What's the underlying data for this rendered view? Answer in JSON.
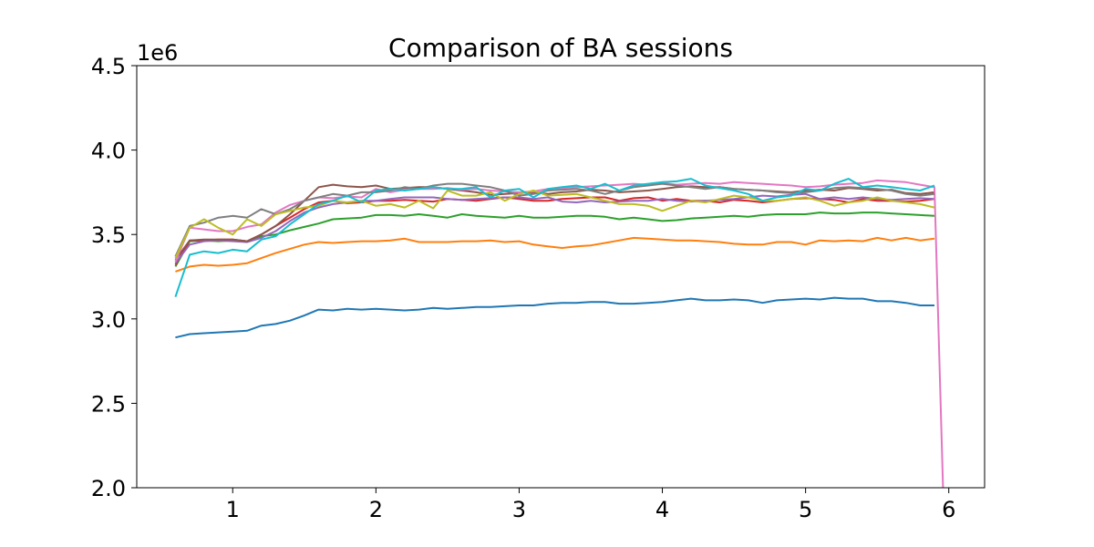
{
  "chart_data": {
    "type": "line",
    "title": "Comparison of BA sessions",
    "xlabel": "",
    "ylabel": "",
    "y_offset_label": "1e6",
    "y_scale": 1000000,
    "xlim": [
      0.33,
      6.25
    ],
    "ylim": [
      2.0,
      4.5
    ],
    "xticks": [
      1,
      2,
      3,
      4,
      5,
      6
    ],
    "yticks": [
      2.0,
      2.5,
      3.0,
      3.5,
      4.0,
      4.5
    ],
    "grid": false,
    "legend": "none",
    "x": [
      0.6,
      0.7,
      0.8,
      0.9,
      1.0,
      1.1,
      1.2,
      1.3,
      1.4,
      1.5,
      1.6,
      1.7,
      1.8,
      1.9,
      2.0,
      2.1,
      2.2,
      2.3,
      2.4,
      2.5,
      2.6,
      2.7,
      2.8,
      2.9,
      3.0,
      3.1,
      3.2,
      3.3,
      3.4,
      3.5,
      3.6,
      3.7,
      3.8,
      3.9,
      4.0,
      4.1,
      4.2,
      4.3,
      4.4,
      4.5,
      4.6,
      4.7,
      4.8,
      4.9,
      5.0,
      5.1,
      5.2,
      5.3,
      5.4,
      5.5,
      5.6,
      5.7,
      5.8,
      5.9
    ],
    "series": [
      {
        "color": "#1f77b4",
        "values": [
          2.89,
          2.91,
          2.915,
          2.92,
          2.925,
          2.93,
          2.96,
          2.97,
          2.99,
          3.02,
          3.055,
          3.05,
          3.06,
          3.055,
          3.06,
          3.055,
          3.05,
          3.055,
          3.065,
          3.06,
          3.065,
          3.07,
          3.07,
          3.075,
          3.08,
          3.08,
          3.09,
          3.095,
          3.095,
          3.1,
          3.1,
          3.09,
          3.09,
          3.095,
          3.1,
          3.11,
          3.12,
          3.11,
          3.11,
          3.115,
          3.11,
          3.095,
          3.11,
          3.115,
          3.12,
          3.115,
          3.125,
          3.12,
          3.12,
          3.105,
          3.105,
          3.095,
          3.08,
          3.08
        ]
      },
      {
        "color": "#ff7f0e",
        "values": [
          3.28,
          3.31,
          3.32,
          3.315,
          3.32,
          3.33,
          3.36,
          3.39,
          3.415,
          3.44,
          3.455,
          3.45,
          3.455,
          3.46,
          3.46,
          3.465,
          3.475,
          3.455,
          3.455,
          3.455,
          3.46,
          3.46,
          3.465,
          3.455,
          3.46,
          3.44,
          3.43,
          3.42,
          3.43,
          3.435,
          3.45,
          3.465,
          3.48,
          3.475,
          3.47,
          3.465,
          3.465,
          3.46,
          3.455,
          3.445,
          3.44,
          3.44,
          3.455,
          3.455,
          3.44,
          3.465,
          3.46,
          3.465,
          3.46,
          3.48,
          3.465,
          3.48,
          3.465,
          3.475
        ]
      },
      {
        "color": "#2ca02c",
        "values": [
          3.31,
          3.46,
          3.465,
          3.46,
          3.465,
          3.455,
          3.49,
          3.5,
          3.525,
          3.545,
          3.565,
          3.59,
          3.595,
          3.6,
          3.615,
          3.615,
          3.61,
          3.62,
          3.61,
          3.6,
          3.62,
          3.61,
          3.605,
          3.6,
          3.61,
          3.6,
          3.6,
          3.605,
          3.61,
          3.61,
          3.605,
          3.59,
          3.6,
          3.59,
          3.58,
          3.585,
          3.595,
          3.6,
          3.605,
          3.61,
          3.605,
          3.615,
          3.62,
          3.62,
          3.62,
          3.63,
          3.625,
          3.625,
          3.63,
          3.63,
          3.625,
          3.62,
          3.615,
          3.61
        ]
      },
      {
        "color": "#d62728",
        "values": [
          3.32,
          3.465,
          3.465,
          3.47,
          3.47,
          3.46,
          3.5,
          3.55,
          3.6,
          3.65,
          3.69,
          3.7,
          3.685,
          3.69,
          3.7,
          3.7,
          3.705,
          3.7,
          3.695,
          3.71,
          3.705,
          3.7,
          3.71,
          3.72,
          3.71,
          3.7,
          3.7,
          3.71,
          3.715,
          3.72,
          3.72,
          3.7,
          3.715,
          3.72,
          3.7,
          3.71,
          3.7,
          3.7,
          3.69,
          3.705,
          3.7,
          3.69,
          3.7,
          3.71,
          3.715,
          3.71,
          3.705,
          3.69,
          3.71,
          3.7,
          3.7,
          3.695,
          3.7,
          3.71
        ]
      },
      {
        "color": "#9467bd",
        "values": [
          3.33,
          3.44,
          3.46,
          3.465,
          3.46,
          3.455,
          3.48,
          3.52,
          3.58,
          3.63,
          3.66,
          3.68,
          3.69,
          3.7,
          3.7,
          3.71,
          3.72,
          3.72,
          3.72,
          3.71,
          3.705,
          3.71,
          3.715,
          3.72,
          3.72,
          3.71,
          3.72,
          3.695,
          3.69,
          3.7,
          3.69,
          3.695,
          3.7,
          3.7,
          3.71,
          3.7,
          3.695,
          3.7,
          3.705,
          3.71,
          3.72,
          3.73,
          3.725,
          3.735,
          3.74,
          3.71,
          3.72,
          3.71,
          3.72,
          3.71,
          3.705,
          3.71,
          3.715,
          3.71
        ]
      },
      {
        "color": "#8c564b",
        "values": [
          3.35,
          3.465,
          3.47,
          3.47,
          3.47,
          3.46,
          3.5,
          3.55,
          3.62,
          3.7,
          3.78,
          3.795,
          3.785,
          3.78,
          3.79,
          3.77,
          3.775,
          3.78,
          3.78,
          3.77,
          3.76,
          3.75,
          3.735,
          3.74,
          3.745,
          3.75,
          3.74,
          3.75,
          3.755,
          3.765,
          3.76,
          3.75,
          3.755,
          3.76,
          3.77,
          3.78,
          3.785,
          3.78,
          3.78,
          3.77,
          3.765,
          3.76,
          3.755,
          3.75,
          3.76,
          3.765,
          3.76,
          3.775,
          3.77,
          3.76,
          3.765,
          3.745,
          3.74,
          3.75
        ]
      },
      {
        "color": "#e377c2",
        "values": [
          3.34,
          3.54,
          3.53,
          3.52,
          3.52,
          3.545,
          3.56,
          3.63,
          3.675,
          3.7,
          3.72,
          3.715,
          3.725,
          3.72,
          3.77,
          3.75,
          3.765,
          3.77,
          3.77,
          3.775,
          3.765,
          3.77,
          3.76,
          3.755,
          3.75,
          3.755,
          3.77,
          3.775,
          3.78,
          3.785,
          3.79,
          3.795,
          3.8,
          3.795,
          3.805,
          3.795,
          3.8,
          3.805,
          3.8,
          3.81,
          3.805,
          3.8,
          3.795,
          3.79,
          3.78,
          3.785,
          3.795,
          3.8,
          3.805,
          3.82,
          3.815,
          3.81,
          3.795,
          3.78
        ]
      },
      {
        "color": "#7f7f7f",
        "values": [
          3.37,
          3.55,
          3.57,
          3.6,
          3.61,
          3.6,
          3.65,
          3.62,
          3.65,
          3.7,
          3.72,
          3.74,
          3.73,
          3.75,
          3.75,
          3.76,
          3.78,
          3.77,
          3.79,
          3.8,
          3.8,
          3.79,
          3.78,
          3.76,
          3.73,
          3.74,
          3.76,
          3.765,
          3.77,
          3.76,
          3.74,
          3.76,
          3.78,
          3.79,
          3.8,
          3.79,
          3.78,
          3.77,
          3.78,
          3.77,
          3.765,
          3.76,
          3.75,
          3.745,
          3.75,
          3.76,
          3.775,
          3.78,
          3.775,
          3.77,
          3.76,
          3.74,
          3.73,
          3.74
        ]
      },
      {
        "color": "#bcbd22",
        "values": [
          3.36,
          3.54,
          3.59,
          3.54,
          3.5,
          3.59,
          3.55,
          3.62,
          3.64,
          3.66,
          3.67,
          3.7,
          3.69,
          3.7,
          3.67,
          3.68,
          3.66,
          3.7,
          3.655,
          3.76,
          3.73,
          3.73,
          3.75,
          3.7,
          3.74,
          3.76,
          3.73,
          3.735,
          3.74,
          3.72,
          3.7,
          3.68,
          3.68,
          3.67,
          3.64,
          3.67,
          3.7,
          3.69,
          3.71,
          3.73,
          3.72,
          3.7,
          3.7,
          3.71,
          3.72,
          3.7,
          3.67,
          3.69,
          3.7,
          3.72,
          3.7,
          3.69,
          3.68,
          3.66
        ]
      },
      {
        "color": "#17becf",
        "values": [
          3.13,
          3.38,
          3.4,
          3.39,
          3.41,
          3.4,
          3.47,
          3.49,
          3.56,
          3.62,
          3.68,
          3.7,
          3.73,
          3.69,
          3.76,
          3.77,
          3.76,
          3.77,
          3.78,
          3.77,
          3.77,
          3.78,
          3.72,
          3.76,
          3.77,
          3.72,
          3.77,
          3.78,
          3.79,
          3.77,
          3.8,
          3.76,
          3.79,
          3.8,
          3.81,
          3.815,
          3.83,
          3.79,
          3.775,
          3.76,
          3.74,
          3.7,
          3.72,
          3.73,
          3.77,
          3.76,
          3.8,
          3.83,
          3.78,
          3.79,
          3.78,
          3.77,
          3.76,
          3.79
        ]
      }
    ],
    "drop_series_index": 6,
    "drop_point": {
      "x": 5.96,
      "y": 2.0
    }
  }
}
